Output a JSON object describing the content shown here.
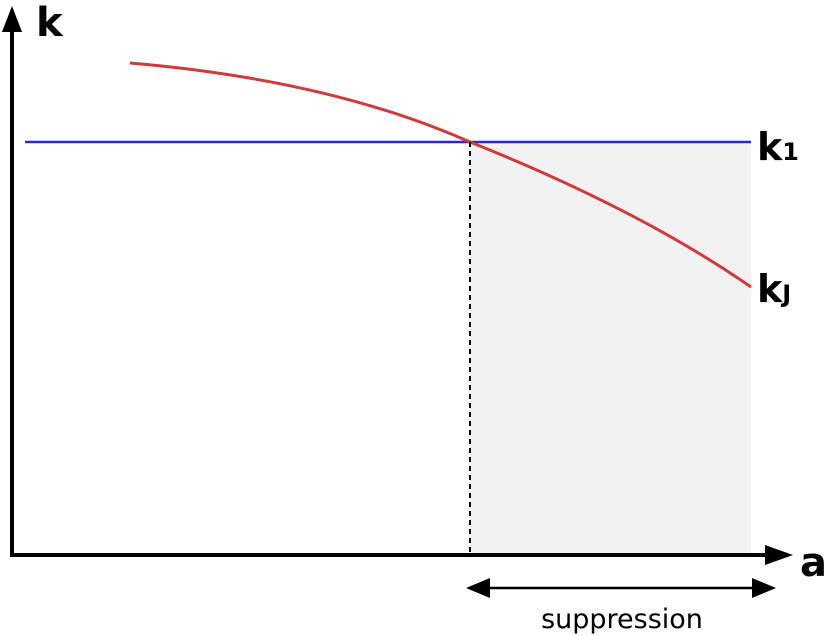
{
  "axes": {
    "y_label": "k",
    "x_label": "a"
  },
  "curves": {
    "horizontal_label_main": "k",
    "horizontal_label_sub": "1",
    "falling_label_main": "k",
    "falling_label_sub": "J"
  },
  "region": {
    "caption": "suppression"
  },
  "colors": {
    "axis": "#000000",
    "horizontal_line": "#2b2bc4",
    "falling_curve": "#d13a3a",
    "shaded_region": "#f2f2f2",
    "divider": "#000000"
  }
}
